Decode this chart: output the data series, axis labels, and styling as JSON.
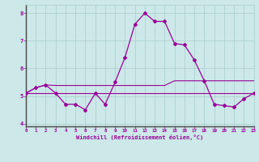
{
  "xlabel": "Windchill (Refroidissement éolien,°C)",
  "background_color": "#cce8e8",
  "line_color": "#990099",
  "grid_color": "#aacccc",
  "x_values": [
    0,
    1,
    2,
    3,
    4,
    5,
    6,
    7,
    8,
    9,
    10,
    11,
    12,
    13,
    14,
    15,
    16,
    17,
    18,
    19,
    20,
    21,
    22,
    23
  ],
  "y_curve": [
    5.1,
    5.3,
    5.4,
    5.1,
    4.7,
    4.7,
    4.5,
    5.1,
    4.7,
    5.5,
    6.4,
    7.6,
    8.0,
    7.7,
    7.7,
    6.9,
    6.85,
    6.3,
    5.55,
    4.7,
    4.65,
    4.6,
    4.9,
    5.1
  ],
  "y_hline": 5.1,
  "y_line2": [
    5.1,
    5.3,
    5.4,
    5.38,
    5.38,
    5.38,
    5.38,
    5.38,
    5.38,
    5.38,
    5.38,
    5.38,
    5.38,
    5.38,
    5.38,
    5.55,
    5.55,
    5.55,
    5.55,
    5.55,
    5.55,
    5.55,
    5.55,
    5.55
  ],
  "ylim": [
    3.9,
    8.3
  ],
  "xlim": [
    0,
    23
  ],
  "yticks": [
    4,
    5,
    6,
    7,
    8
  ],
  "xticks": [
    0,
    1,
    2,
    3,
    4,
    5,
    6,
    7,
    8,
    9,
    10,
    11,
    12,
    13,
    14,
    15,
    16,
    17,
    18,
    19,
    20,
    21,
    22,
    23
  ]
}
